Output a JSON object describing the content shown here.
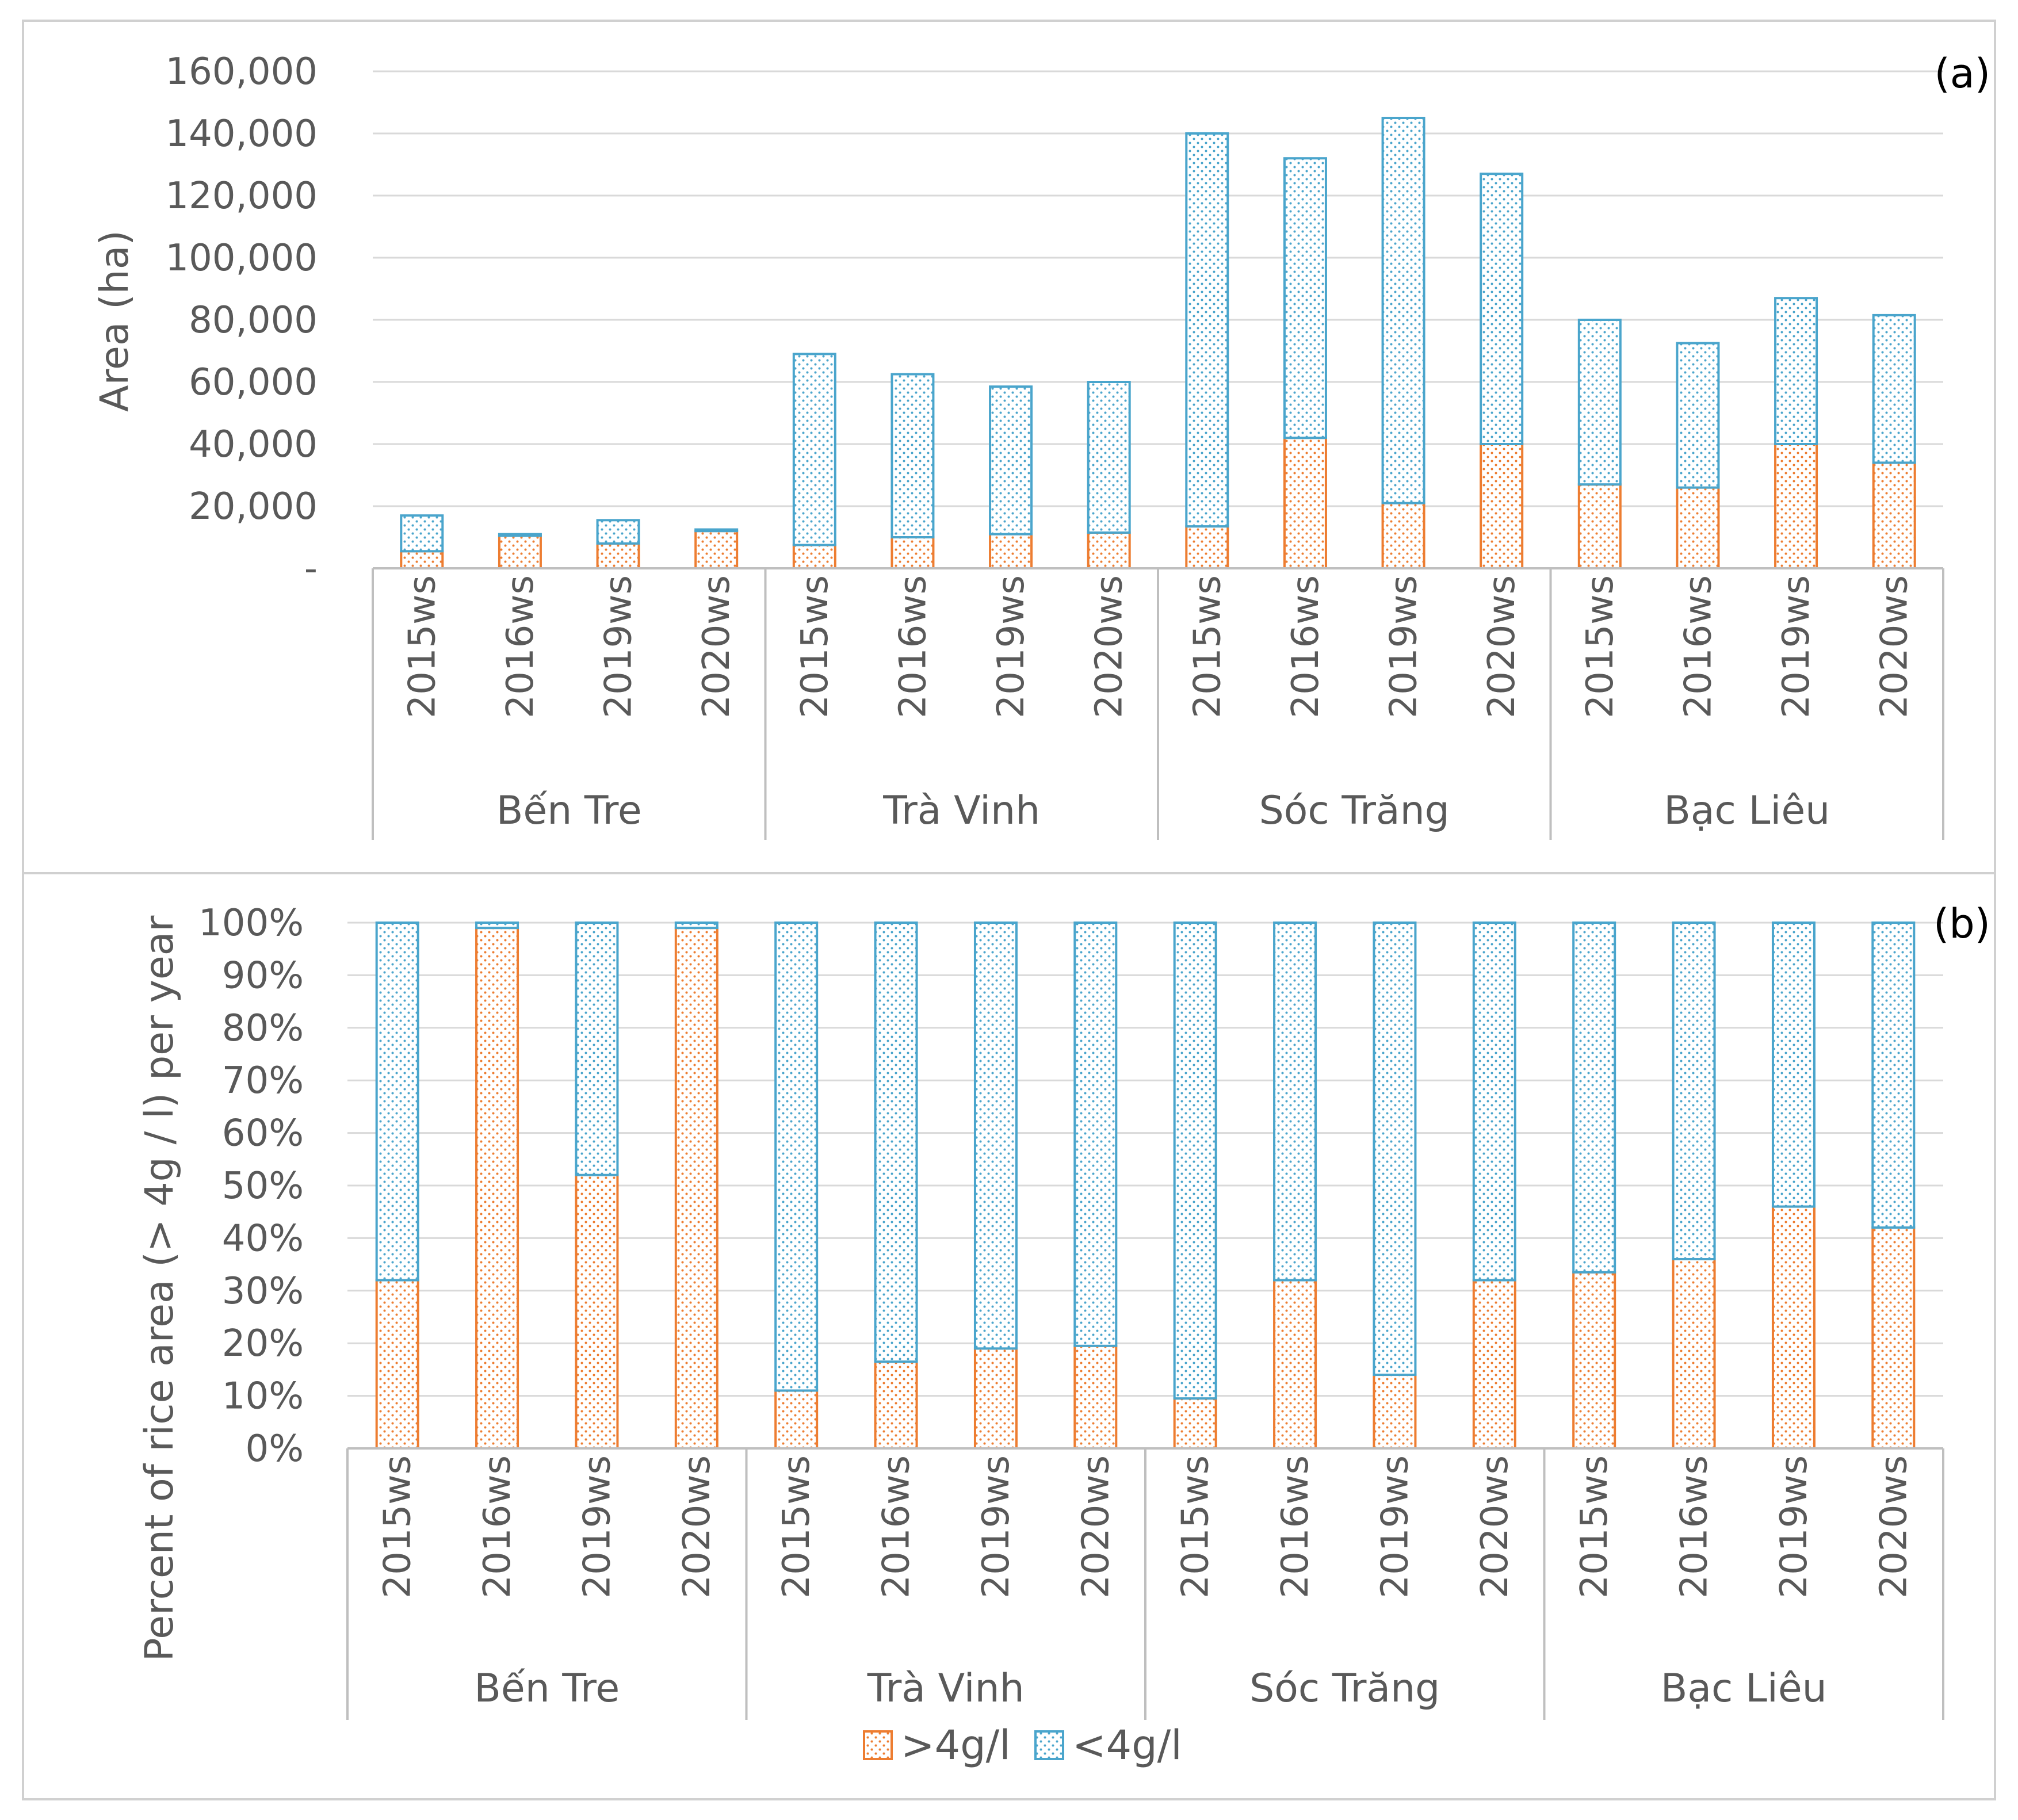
{
  "colors": {
    "above_4gl": "#ed7d31",
    "below_4gl": "#4aa5cc",
    "grid": "#d9d9d9",
    "frame": "#bfbfbf",
    "text": "#595959"
  },
  "legend": [
    {
      "key": "above",
      "label": ">4g/l"
    },
    {
      "key": "below",
      "label": "<4g/l"
    }
  ],
  "chart_data": [
    {
      "panel": "(a)",
      "type": "bar",
      "stacked": true,
      "ylabel": "Area (ha)",
      "ylim": [
        0,
        160000
      ],
      "yticks": [
        "-",
        "20,000",
        "40,000",
        "60,000",
        "80,000",
        "100,000",
        "120,000",
        "140,000",
        "160,000"
      ],
      "grid": true,
      "groups": [
        "Bến Tre",
        "Trà Vinh",
        "Sóc Trăng",
        "Bạc Liêu"
      ],
      "categories": [
        "2015ws",
        "2016ws",
        "2019ws",
        "2020ws",
        "2015ws",
        "2016ws",
        "2019ws",
        "2020ws",
        "2015ws",
        "2016ws",
        "2019ws",
        "2020ws",
        "2015ws",
        "2016ws",
        "2019ws",
        "2020ws"
      ],
      "series": [
        {
          "name": ">4g/l",
          "values": [
            5500,
            10500,
            8000,
            12000,
            7500,
            10000,
            11000,
            11500,
            13500,
            42000,
            21000,
            40000,
            27000,
            26000,
            40000,
            34000
          ]
        },
        {
          "name": "<4g/l",
          "values": [
            11500,
            500,
            7500,
            500,
            61500,
            52500,
            47500,
            48500,
            126500,
            90000,
            124000,
            87000,
            53000,
            46500,
            47000,
            47500
          ]
        }
      ]
    },
    {
      "panel": "(b)",
      "type": "bar",
      "stacked": true,
      "ylabel": "Percent of rice area (> 4g / l) per year",
      "ylim": [
        0,
        100
      ],
      "yticks": [
        "0%",
        "10%",
        "20%",
        "30%",
        "40%",
        "50%",
        "60%",
        "70%",
        "80%",
        "90%",
        "100%"
      ],
      "grid": true,
      "groups": [
        "Bến Tre",
        "Trà Vinh",
        "Sóc Trăng",
        "Bạc Liêu"
      ],
      "categories": [
        "2015ws",
        "2016ws",
        "2019ws",
        "2020ws",
        "2015ws",
        "2016ws",
        "2019ws",
        "2020ws",
        "2015ws",
        "2016ws",
        "2019ws",
        "2020ws",
        "2015ws",
        "2016ws",
        "2019ws",
        "2020ws"
      ],
      "series": [
        {
          "name": ">4g/l",
          "values": [
            32,
            99,
            52,
            99,
            11,
            16.5,
            19,
            19.5,
            9.5,
            32,
            14,
            32,
            33.5,
            36,
            46,
            42
          ]
        },
        {
          "name": "<4g/l",
          "values": [
            68,
            1,
            48,
            1,
            89,
            83.5,
            81,
            80.5,
            90.5,
            68,
            86,
            68,
            66.5,
            64,
            54,
            58
          ]
        }
      ]
    }
  ]
}
